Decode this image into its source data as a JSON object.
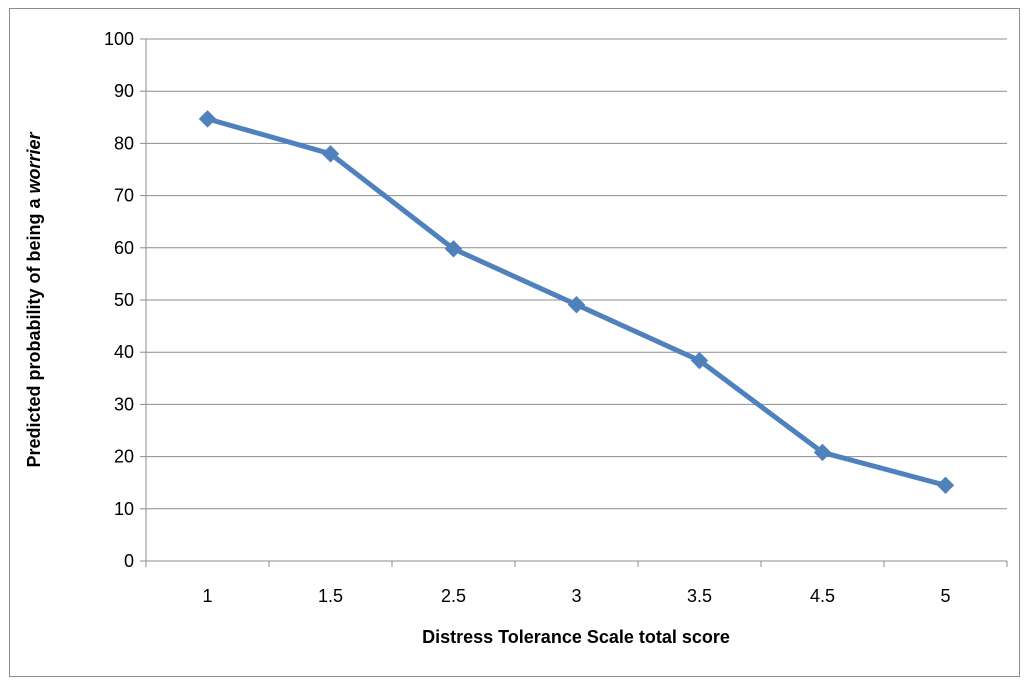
{
  "chart_data": {
    "type": "line",
    "title": "",
    "xlabel": "Distress Tolerance Scale total score",
    "ylabel_prefix": "Predicted probability of being a ",
    "ylabel_emphasis": "worrier",
    "categories": [
      "1",
      "1.5",
      "2.5",
      "3",
      "3.5",
      "4.5",
      "5"
    ],
    "series": [
      {
        "values": [
          84.7,
          78.0,
          59.8,
          49.1,
          38.4,
          20.8,
          14.5
        ]
      }
    ],
    "ylim": [
      0,
      100
    ],
    "yticks": [
      0,
      10,
      20,
      30,
      40,
      50,
      60,
      70,
      80,
      90,
      100
    ],
    "grid": true,
    "legend": "none",
    "colors": {
      "series": "#4f81bd",
      "grid": "#8c8c8c",
      "axis": "#8c8c8c"
    }
  }
}
